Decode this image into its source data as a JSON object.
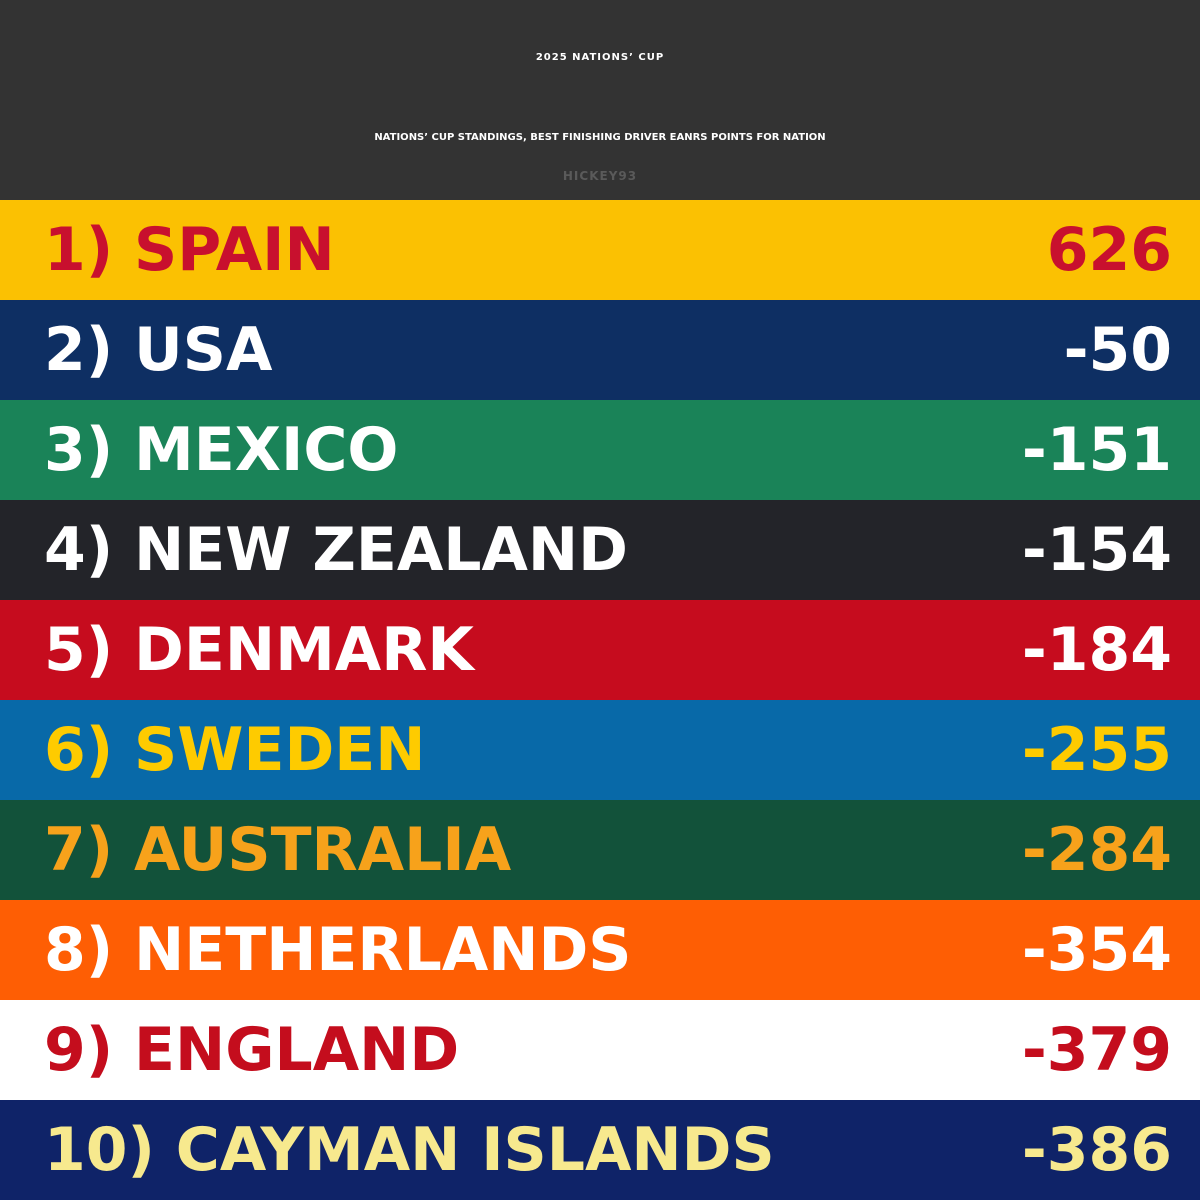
{
  "header": {
    "title": "2025 NATIONS’ CUP",
    "subtitle": "NATIONS’ CUP STANDINGS, BEST FINISHING DRIVER EANRS POINTS FOR NATION",
    "credit": "HICKEY93"
  },
  "standings": [
    {
      "label": "1) SPAIN",
      "points": "626",
      "bg": "#fbc102",
      "fg": "#c8102e"
    },
    {
      "label": "2) USA",
      "points": "-50",
      "bg": "#0e2f63",
      "fg": "#ffffff"
    },
    {
      "label": "3) MEXICO",
      "points": "-151",
      "bg": "#1a8358",
      "fg": "#ffffff"
    },
    {
      "label": "4) NEW ZEALAND",
      "points": "-154",
      "bg": "#232429",
      "fg": "#ffffff"
    },
    {
      "label": "5) DENMARK",
      "points": "-184",
      "bg": "#c60c1e",
      "fg": "#ffffff"
    },
    {
      "label": "6) SWEDEN",
      "points": "-255",
      "bg": "#0869a8",
      "fg": "#fecb00"
    },
    {
      "label": "7) AUSTRALIA",
      "points": "-284",
      "bg": "#12523a",
      "fg": "#f7a21b"
    },
    {
      "label": "8) NETHERLANDS",
      "points": "-354",
      "bg": "#fe5e04",
      "fg": "#ffffff"
    },
    {
      "label": "9) ENGLAND",
      "points": "-379",
      "bg": "#ffffff",
      "fg": "#c40d1d"
    },
    {
      "label": "10) CAYMAN ISLANDS",
      "points": "-386",
      "bg": "#0f2368",
      "fg": "#f7e98e"
    }
  ]
}
